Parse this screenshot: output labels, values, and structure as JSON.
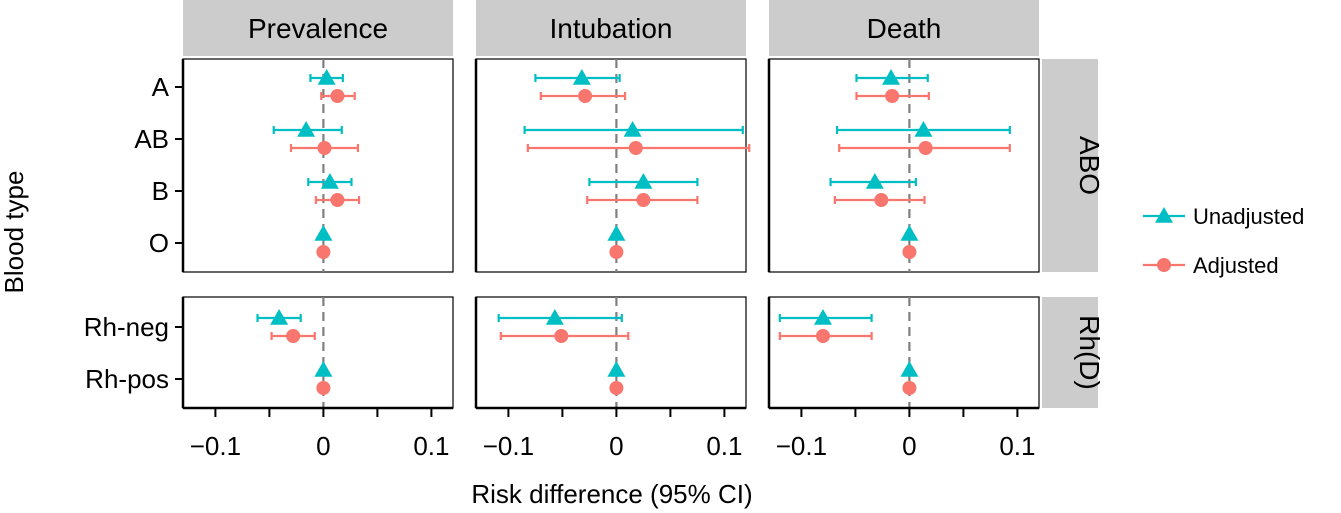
{
  "chart_data": {
    "type": "forest",
    "xlabel": "Risk difference (95% CI)",
    "ylabel": "Blood type",
    "xlim": [
      -0.13,
      0.12
    ],
    "xticks": [
      -0.1,
      0,
      0.1
    ],
    "xtick_labels": [
      "−0.1",
      "0",
      "0.1"
    ],
    "reference_line": 0,
    "facets": [
      {
        "key": "prevalence",
        "label": "Prevalence"
      },
      {
        "key": "intubation",
        "label": "Intubation"
      },
      {
        "key": "death",
        "label": "Death"
      }
    ],
    "row_groups": [
      {
        "key": "abo",
        "label": "ABO",
        "categories": [
          "A",
          "AB",
          "B",
          "O"
        ]
      },
      {
        "key": "rhd",
        "label": "Rh(D)",
        "categories": [
          "Rh-neg",
          "Rh-pos"
        ]
      }
    ],
    "series": [
      {
        "name": "Unadjusted",
        "marker": "triangle",
        "color": "#00BFC4"
      },
      {
        "name": "Adjusted",
        "marker": "circle",
        "color": "#F8766D"
      }
    ],
    "points": [
      {
        "facet": "prevalence",
        "category": "A",
        "series": "Unadjusted",
        "est": 0.003,
        "lo": -0.012,
        "hi": 0.018
      },
      {
        "facet": "prevalence",
        "category": "A",
        "series": "Adjusted",
        "est": 0.013,
        "lo": -0.002,
        "hi": 0.029
      },
      {
        "facet": "prevalence",
        "category": "AB",
        "series": "Unadjusted",
        "est": -0.016,
        "lo": -0.046,
        "hi": 0.017
      },
      {
        "facet": "prevalence",
        "category": "AB",
        "series": "Adjusted",
        "est": 0.001,
        "lo": -0.03,
        "hi": 0.032
      },
      {
        "facet": "prevalence",
        "category": "B",
        "series": "Unadjusted",
        "est": 0.006,
        "lo": -0.014,
        "hi": 0.026
      },
      {
        "facet": "prevalence",
        "category": "B",
        "series": "Adjusted",
        "est": 0.013,
        "lo": -0.007,
        "hi": 0.033
      },
      {
        "facet": "prevalence",
        "category": "O",
        "series": "Unadjusted",
        "est": 0,
        "lo": 0,
        "hi": 0
      },
      {
        "facet": "prevalence",
        "category": "O",
        "series": "Adjusted",
        "est": 0,
        "lo": 0,
        "hi": 0
      },
      {
        "facet": "prevalence",
        "category": "Rh-neg",
        "series": "Unadjusted",
        "est": -0.041,
        "lo": -0.061,
        "hi": -0.021
      },
      {
        "facet": "prevalence",
        "category": "Rh-neg",
        "series": "Adjusted",
        "est": -0.028,
        "lo": -0.048,
        "hi": -0.008
      },
      {
        "facet": "prevalence",
        "category": "Rh-pos",
        "series": "Unadjusted",
        "est": 0,
        "lo": 0,
        "hi": 0
      },
      {
        "facet": "prevalence",
        "category": "Rh-pos",
        "series": "Adjusted",
        "est": 0,
        "lo": 0,
        "hi": 0
      },
      {
        "facet": "intubation",
        "category": "A",
        "series": "Unadjusted",
        "est": -0.032,
        "lo": -0.075,
        "hi": 0.003
      },
      {
        "facet": "intubation",
        "category": "A",
        "series": "Adjusted",
        "est": -0.029,
        "lo": -0.07,
        "hi": 0.008
      },
      {
        "facet": "intubation",
        "category": "AB",
        "series": "Unadjusted",
        "est": 0.015,
        "lo": -0.085,
        "hi": 0.117
      },
      {
        "facet": "intubation",
        "category": "AB",
        "series": "Adjusted",
        "est": 0.018,
        "lo": -0.082,
        "hi": 0.123
      },
      {
        "facet": "intubation",
        "category": "B",
        "series": "Unadjusted",
        "est": 0.025,
        "lo": -0.025,
        "hi": 0.075
      },
      {
        "facet": "intubation",
        "category": "B",
        "series": "Adjusted",
        "est": 0.025,
        "lo": -0.027,
        "hi": 0.075
      },
      {
        "facet": "intubation",
        "category": "O",
        "series": "Unadjusted",
        "est": 0,
        "lo": 0,
        "hi": 0
      },
      {
        "facet": "intubation",
        "category": "O",
        "series": "Adjusted",
        "est": 0,
        "lo": 0,
        "hi": 0
      },
      {
        "facet": "intubation",
        "category": "Rh-neg",
        "series": "Unadjusted",
        "est": -0.057,
        "lo": -0.109,
        "hi": 0.005
      },
      {
        "facet": "intubation",
        "category": "Rh-neg",
        "series": "Adjusted",
        "est": -0.051,
        "lo": -0.107,
        "hi": 0.011
      },
      {
        "facet": "intubation",
        "category": "Rh-pos",
        "series": "Unadjusted",
        "est": 0,
        "lo": 0,
        "hi": 0
      },
      {
        "facet": "intubation",
        "category": "Rh-pos",
        "series": "Adjusted",
        "est": 0,
        "lo": 0,
        "hi": 0
      },
      {
        "facet": "death",
        "category": "A",
        "series": "Unadjusted",
        "est": -0.017,
        "lo": -0.049,
        "hi": 0.017
      },
      {
        "facet": "death",
        "category": "A",
        "series": "Adjusted",
        "est": -0.016,
        "lo": -0.049,
        "hi": 0.018
      },
      {
        "facet": "death",
        "category": "AB",
        "series": "Unadjusted",
        "est": 0.013,
        "lo": -0.067,
        "hi": 0.093
      },
      {
        "facet": "death",
        "category": "AB",
        "series": "Adjusted",
        "est": 0.015,
        "lo": -0.065,
        "hi": 0.093
      },
      {
        "facet": "death",
        "category": "B",
        "series": "Unadjusted",
        "est": -0.032,
        "lo": -0.073,
        "hi": 0.006
      },
      {
        "facet": "death",
        "category": "B",
        "series": "Adjusted",
        "est": -0.026,
        "lo": -0.069,
        "hi": 0.014
      },
      {
        "facet": "death",
        "category": "O",
        "series": "Unadjusted",
        "est": 0,
        "lo": 0,
        "hi": 0
      },
      {
        "facet": "death",
        "category": "O",
        "series": "Adjusted",
        "est": 0,
        "lo": 0,
        "hi": 0
      },
      {
        "facet": "death",
        "category": "Rh-neg",
        "series": "Unadjusted",
        "est": -0.08,
        "lo": -0.12,
        "hi": -0.035
      },
      {
        "facet": "death",
        "category": "Rh-neg",
        "series": "Adjusted",
        "est": -0.08,
        "lo": -0.12,
        "hi": -0.035
      },
      {
        "facet": "death",
        "category": "Rh-pos",
        "series": "Unadjusted",
        "est": 0,
        "lo": 0,
        "hi": 0
      },
      {
        "facet": "death",
        "category": "Rh-pos",
        "series": "Adjusted",
        "est": 0,
        "lo": 0,
        "hi": 0
      }
    ],
    "colors": {
      "strip_bg": "#CCCCCC",
      "refline": "#7F7F7F",
      "axis": "#000000"
    }
  }
}
